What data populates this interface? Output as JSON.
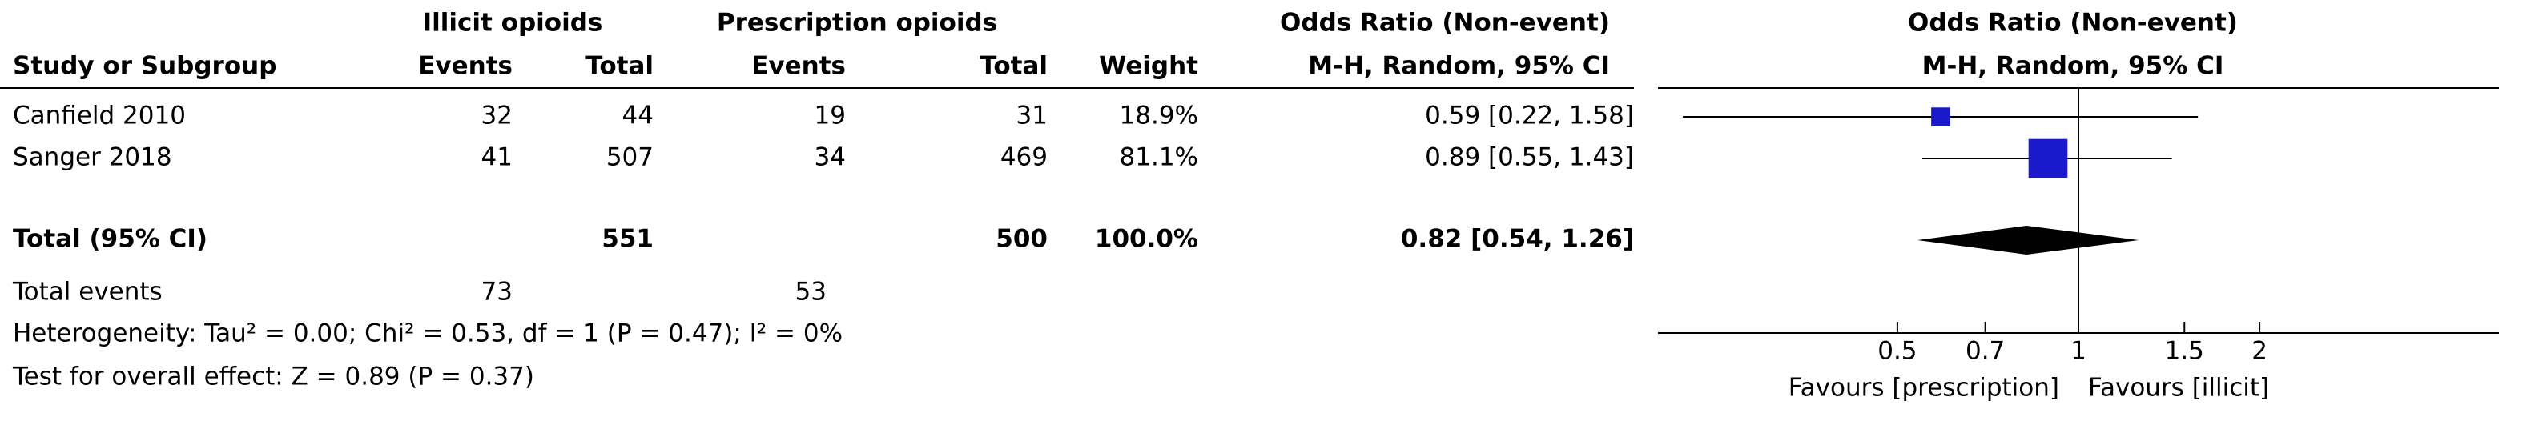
{
  "chart_data": {
    "type": "forest",
    "group1": "Illicit opioids",
    "group2": "Prescription opioids",
    "columns": [
      "Study or Subgroup",
      "Events",
      "Total",
      "Events",
      "Total",
      "Weight"
    ],
    "effect_title": "Odds Ratio (Non-event)",
    "effect_method": "M-H, Random, 95% CI",
    "studies": [
      {
        "name": "Canfield 2010",
        "events1": 32,
        "total1": 44,
        "events2": 19,
        "total2": 31,
        "weight": 18.9,
        "weight_label": "18.9%",
        "or": 0.59,
        "ci": [
          0.22,
          1.58
        ],
        "or_label": "0.59 [0.22, 1.58]"
      },
      {
        "name": "Sanger 2018",
        "events1": 41,
        "total1": 507,
        "events2": 34,
        "total2": 469,
        "weight": 81.1,
        "weight_label": "81.1%",
        "or": 0.89,
        "ci": [
          0.55,
          1.43
        ],
        "or_label": "0.89 [0.55, 1.43]"
      }
    ],
    "total": {
      "name": "Total (95% CI)",
      "total1": 551,
      "total2": 500,
      "weight": 100.0,
      "weight_label": "100.0%",
      "or": 0.82,
      "ci": [
        0.54,
        1.26
      ],
      "or_label": "0.82 [0.54, 1.26]"
    },
    "total_events": {
      "name": "Total events",
      "events1": 73,
      "events2": 53
    },
    "heterogeneity": "Heterogeneity: Tau² = 0.00; Chi² = 0.53, df = 1 (P = 0.47); I² = 0%",
    "overall_effect": "Test for overall effect: Z = 0.89 (P = 0.37)",
    "xlim": [
      0.2,
      5
    ],
    "xticks": [
      0.5,
      0.7,
      1,
      1.5,
      2
    ],
    "log_x": true,
    "favours_left": "Favours [prescription]",
    "favours_right": "Favours [illicit]",
    "study_color": "#1a1acc",
    "total_color": "#000000"
  }
}
